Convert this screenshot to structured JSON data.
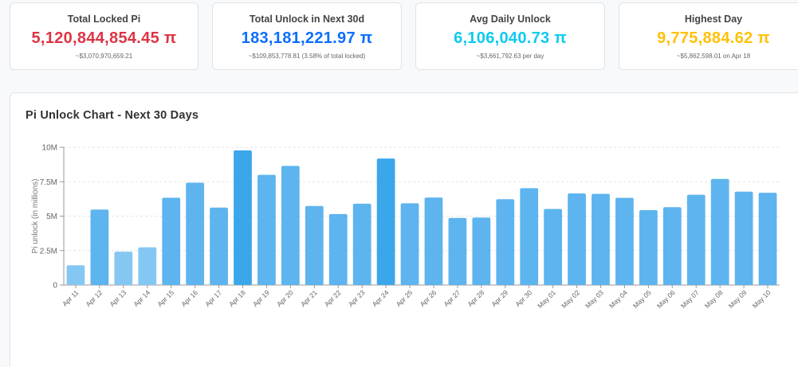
{
  "stats": [
    {
      "title": "Total Locked Pi",
      "value": "5,120,844,854.45 π",
      "sub": "~$3,070,970,659.21",
      "color": "#dc3545"
    },
    {
      "title": "Total Unlock in Next 30d",
      "value": "183,181,221.97 π",
      "sub": "~$109,853,778.81 (3.58% of total locked)",
      "color": "#0d6efd"
    },
    {
      "title": "Avg Daily Unlock",
      "value": "6,106,040.73 π",
      "sub": "~$3,661,792.63 per day",
      "color": "#0dcaf0"
    },
    {
      "title": "Highest Day",
      "value": "9,775,884.62 π",
      "sub": "~$5,862,598.01 on Apr 18",
      "color": "#ffc107"
    }
  ],
  "chart_title": "Pi Unlock Chart - Next 30 Days",
  "chart_data": {
    "type": "bar",
    "title": "Pi Unlock Chart - Next 30 Days",
    "xlabel": "",
    "ylabel": "Pi unlock (in millions)",
    "ylim": [
      0,
      10000000
    ],
    "yticks": [
      0,
      2500000,
      5000000,
      7500000,
      10000000
    ],
    "ytick_labels": [
      "0",
      "2.5M",
      "5M",
      "7.5M",
      "10M"
    ],
    "grid": true,
    "categories": [
      "Apr 11",
      "Apr 12",
      "Apr 13",
      "Apr 14",
      "Apr 15",
      "Apr 16",
      "Apr 17",
      "Apr 18",
      "Apr 19",
      "Apr 20",
      "Apr 21",
      "Apr 22",
      "Apr 23",
      "Apr 24",
      "Apr 25",
      "Apr 26",
      "Apr 27",
      "Apr 28",
      "Apr 29",
      "Apr 30",
      "May 01",
      "May 02",
      "May 03",
      "May 04",
      "May 05",
      "May 06",
      "May 07",
      "May 08",
      "May 09",
      "May 10"
    ],
    "values": [
      1430000,
      5480000,
      2420000,
      2740000,
      6340000,
      7430000,
      5620000,
      9775885,
      8000000,
      8650000,
      5740000,
      5150000,
      5900000,
      9180000,
      5930000,
      6350000,
      4870000,
      4900000,
      6230000,
      7030000,
      5520000,
      6650000,
      6620000,
      6330000,
      5430000,
      5650000,
      6550000,
      7700000,
      6780000,
      6700000
    ],
    "colors": {
      "high": "#3ca6ea",
      "mid": "#5db4ee",
      "low": "#85c7f3"
    }
  }
}
